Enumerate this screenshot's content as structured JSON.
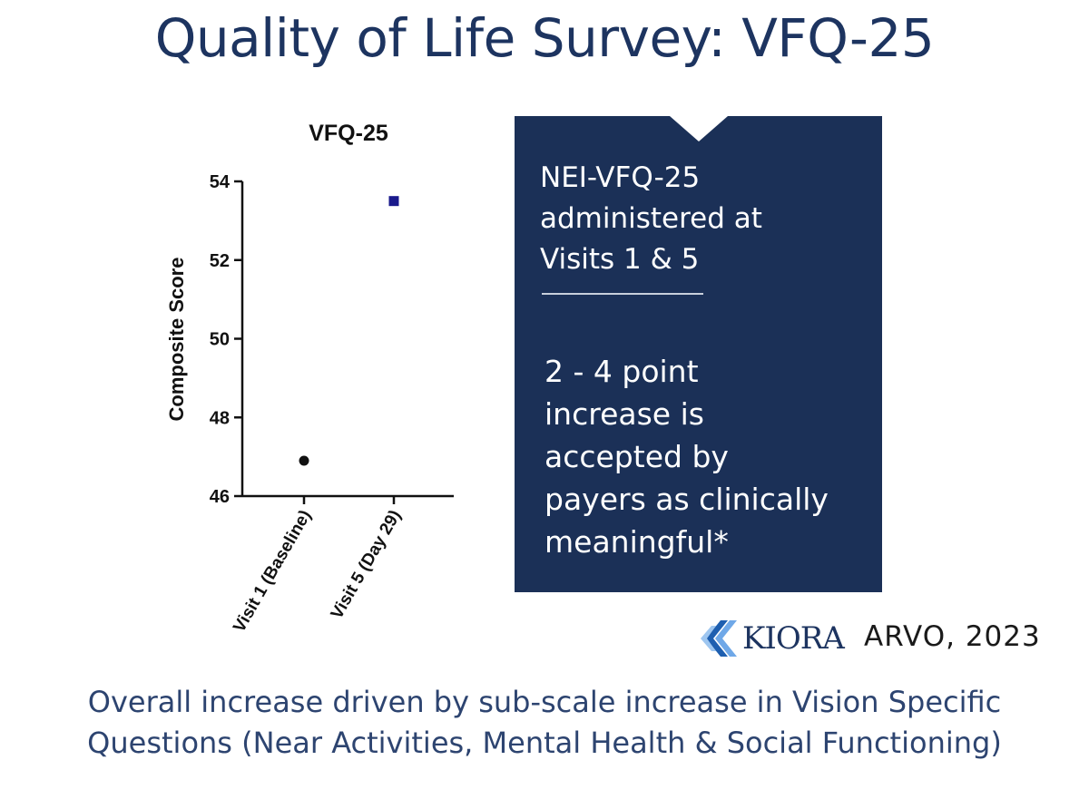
{
  "slide": {
    "title": "Quality of Life Survey: VFQ-25",
    "callout_top": "NEI-VFQ-25\nadministered at\nVisits 1 & 5",
    "callout_bottom": "2 - 4 point\nincrease is\naccepted by\npayers as clinically\nmeaningful*",
    "logo_text": "KIORA",
    "citation": "ARVO, 2023",
    "footnote": "Overall increase driven by sub-scale increase in Vision Specific\nQuestions (Near Activities, Mental Health & Social Functioning)"
  },
  "colors": {
    "navy": "#1b3057",
    "title": "#1d3460",
    "logo_blue": "#3a7fd0",
    "series_baseline": "#111111",
    "series_day29": "#1a1a8c"
  },
  "chart_data": {
    "type": "scatter",
    "title": "VFQ-25",
    "xlabel": "",
    "ylabel": "Composite Score",
    "categories": [
      "Visit 1 (Baseline)",
      "Visit 5 (Day 29)"
    ],
    "ylim": [
      46,
      54
    ],
    "yticks": [
      46,
      48,
      50,
      52,
      54
    ],
    "grid": false,
    "legend": "none",
    "points": [
      {
        "category": "Visit 1 (Baseline)",
        "value": 46.9,
        "marker": "circle"
      },
      {
        "category": "Visit 5 (Day 29)",
        "value": 53.5,
        "marker": "square"
      }
    ]
  }
}
